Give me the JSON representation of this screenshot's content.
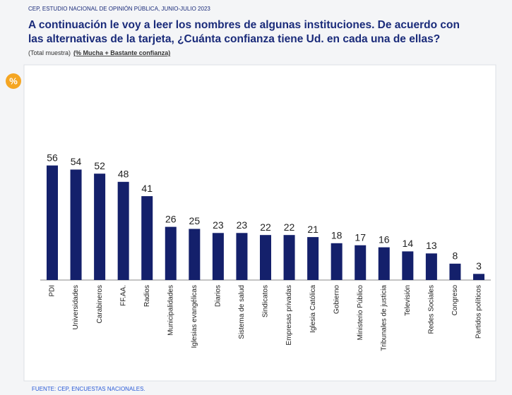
{
  "header": "CEP, ESTUDIO NACIONAL DE OPINIÓN PÚBLICA, JUNIO-JULIO 2023",
  "badge": "%",
  "source": "FUENTE: CEP, ENCUESTAS NACIONALES.",
  "chart_data": {
    "type": "bar",
    "title_lines": [
      "A continuación le voy a leer los nombres de algunas instituciones. De acuerdo con",
      "las alternativas de la tarjeta, ¿Cuánta confianza tiene Ud. en cada una de ellas?"
    ],
    "subtitle": "(Total muestra)",
    "subtitle_bold": "(% Mucha + Bastante confianza)",
    "categories": [
      "PDI",
      "Universidades",
      "Carabineros",
      "FF.AA.",
      "Radios",
      "Municipalidades",
      "Iglesias evangélicas",
      "Diarios",
      "Sistema de salud",
      "Sindicatos",
      "Empresas privadas",
      "Iglesia Católica",
      "Gobierno",
      "Ministerio Público",
      "Tribunales de justicia",
      "Televisión",
      "Redes Sociales",
      "Congreso",
      "Partidos políticos"
    ],
    "values": [
      56,
      54,
      52,
      48,
      41,
      26,
      25,
      23,
      23,
      22,
      22,
      21,
      18,
      17,
      16,
      14,
      13,
      8,
      3
    ],
    "color": "#14206b"
  }
}
